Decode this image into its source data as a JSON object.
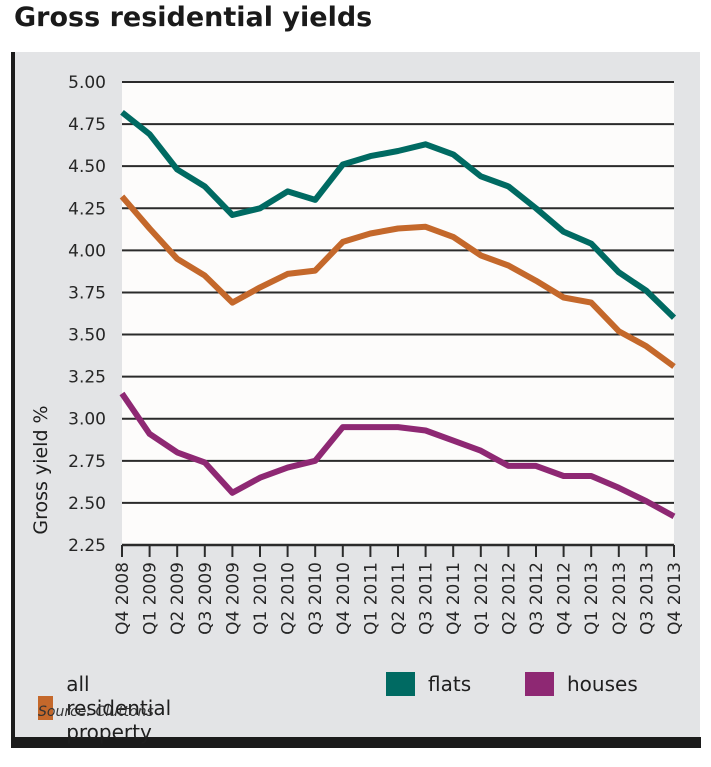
{
  "chart_data": {
    "type": "line",
    "title": "Gross residential yields",
    "xlabel": "",
    "ylabel": "Gross yield %",
    "ylim": [
      2.25,
      5.0
    ],
    "yticks": [
      "2.25",
      "2.50",
      "2.75",
      "3.00",
      "3.25",
      "3.50",
      "3.75",
      "4.00",
      "4.25",
      "4.50",
      "4.75",
      "5.00"
    ],
    "grid": true,
    "legend_position": "bottom",
    "categories": [
      "Q4 2008",
      "Q1 2009",
      "Q2 2009",
      "Q3 2009",
      "Q4 2009",
      "Q1 2010",
      "Q2 2010",
      "Q3 2010",
      "Q4 2010",
      "Q1 2011",
      "Q2 2011",
      "Q3 2011",
      "Q4 2011",
      "Q1 2012",
      "Q2 2012",
      "Q3 2012",
      "Q4 2012",
      "Q1 2013",
      "Q2 2013",
      "Q3 2013",
      "Q4 2013"
    ],
    "series": [
      {
        "name": "all residential property",
        "color": "#c4682b",
        "values": [
          4.32,
          4.13,
          3.95,
          3.85,
          3.69,
          3.78,
          3.86,
          3.88,
          4.05,
          4.1,
          4.13,
          4.14,
          4.08,
          3.97,
          3.91,
          3.82,
          3.72,
          3.69,
          3.52,
          3.43,
          3.31
        ]
      },
      {
        "name": "flats",
        "color": "#006a62",
        "values": [
          4.82,
          4.69,
          4.48,
          4.38,
          4.21,
          4.25,
          4.35,
          4.3,
          4.51,
          4.56,
          4.59,
          4.63,
          4.57,
          4.44,
          4.38,
          4.25,
          4.11,
          4.04,
          3.87,
          3.76,
          3.6
        ]
      },
      {
        "name": "houses",
        "color": "#8e2873",
        "values": [
          3.15,
          2.91,
          2.8,
          2.74,
          2.56,
          2.65,
          2.71,
          2.75,
          2.95,
          2.95,
          2.95,
          2.93,
          2.87,
          2.81,
          2.72,
          2.72,
          2.66,
          2.66,
          2.59,
          2.51,
          2.42
        ]
      }
    ],
    "source": "Source: Cluttons"
  },
  "colors": {
    "panel_background": "#e3e4e6",
    "plot_background": "#fdfcfb",
    "frame": "#1b1b1b"
  }
}
